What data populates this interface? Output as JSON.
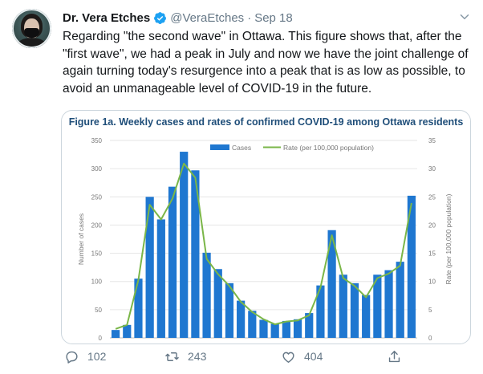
{
  "tweet": {
    "author_name": "Dr. Vera Etches",
    "handle": "@VeraEtches",
    "separator": "·",
    "date": "Sep 18",
    "text": "Regarding \"the second wave\" in Ottawa.  This figure shows that, after the \"first wave\", we had a peak in July and now we have the joint challenge of again turning today's resurgence into a peak that is as low as possible, to avoid an unmanageable level of COVID-19 in the future."
  },
  "actions": {
    "replies": "102",
    "retweets": "243",
    "likes": "404"
  },
  "icons": {
    "verified": "verified-badge-icon",
    "caret": "chevron-down-icon",
    "reply": "reply-icon",
    "retweet": "retweet-icon",
    "like": "heart-icon",
    "share": "share-icon"
  },
  "colors": {
    "bar": "#1f77d0",
    "line": "#7ab648",
    "title": "#1f4e79",
    "verified": "#1da1f2"
  },
  "chart_data": {
    "type": "bar",
    "title": "Figure 1a. Weekly cases and rates of confirmed COVID-19 among Ottawa residents",
    "ylabel": "Number of cases",
    "y2label": "Rate (per 100,000 population)",
    "ylim": [
      0,
      350
    ],
    "y2lim": [
      0,
      35
    ],
    "yticks": [
      0,
      50,
      100,
      150,
      200,
      250,
      300,
      350
    ],
    "y2ticks": [
      0,
      5,
      10,
      15,
      20,
      25,
      30,
      35
    ],
    "legend_position": "top",
    "grid": true,
    "series": [
      {
        "name": "Cases",
        "type": "bar",
        "values": [
          14,
          23,
          105,
          250,
          210,
          268,
          330,
          297,
          151,
          122,
          97,
          66,
          48,
          32,
          25,
          30,
          33,
          44,
          93,
          191,
          112,
          97,
          76,
          112,
          120,
          135,
          252
        ]
      },
      {
        "name": "Rate (per 100,000 population)",
        "type": "line",
        "values": [
          1.6,
          2.3,
          10.3,
          23.6,
          21.0,
          24.7,
          30.9,
          28.4,
          14.0,
          11.3,
          9.2,
          6.4,
          4.6,
          3.3,
          2.4,
          2.9,
          3.1,
          4.0,
          8.9,
          18.2,
          10.6,
          9.2,
          7.2,
          10.6,
          11.4,
          12.8,
          23.9
        ]
      }
    ]
  }
}
